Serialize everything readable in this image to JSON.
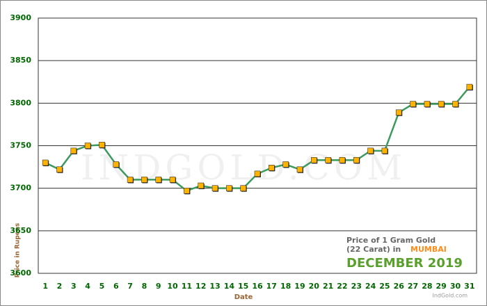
{
  "chart_data": {
    "type": "line",
    "x_label": "Date",
    "y_label": "Price in Rupees",
    "legend_title": "Price of 1 Gram Gold",
    "legend_carat": "(22 Carat) in",
    "legend_city": "MUMBAI",
    "legend_period": "DECEMBER 2019",
    "credit": "IndGold.com",
    "watermark": "INDGOLD.COM",
    "categories": [
      "1",
      "2",
      "3",
      "4",
      "5",
      "6",
      "7",
      "8",
      "9",
      "10",
      "11",
      "12",
      "13",
      "14",
      "15",
      "16",
      "17",
      "18",
      "19",
      "20",
      "21",
      "22",
      "23",
      "24",
      "25",
      "26",
      "27",
      "28",
      "29",
      "30",
      "31"
    ],
    "series": [
      {
        "name": "Price",
        "color": "#3c9a5f",
        "marker_color": "#ffb300",
        "values": [
          3730,
          3722,
          3744,
          3750,
          3751,
          3728,
          3710,
          3710,
          3710,
          3710,
          3697,
          3703,
          3700,
          3700,
          3700,
          3717,
          3724,
          3728,
          3722,
          3733,
          3733,
          3733,
          3733,
          3744,
          3744,
          3789,
          3799,
          3799,
          3799,
          3799,
          3819
        ]
      }
    ],
    "ylim": [
      3600,
      3900
    ],
    "yticks": [
      3600,
      3650,
      3700,
      3750,
      3800,
      3850,
      3900
    ],
    "grid": true
  }
}
